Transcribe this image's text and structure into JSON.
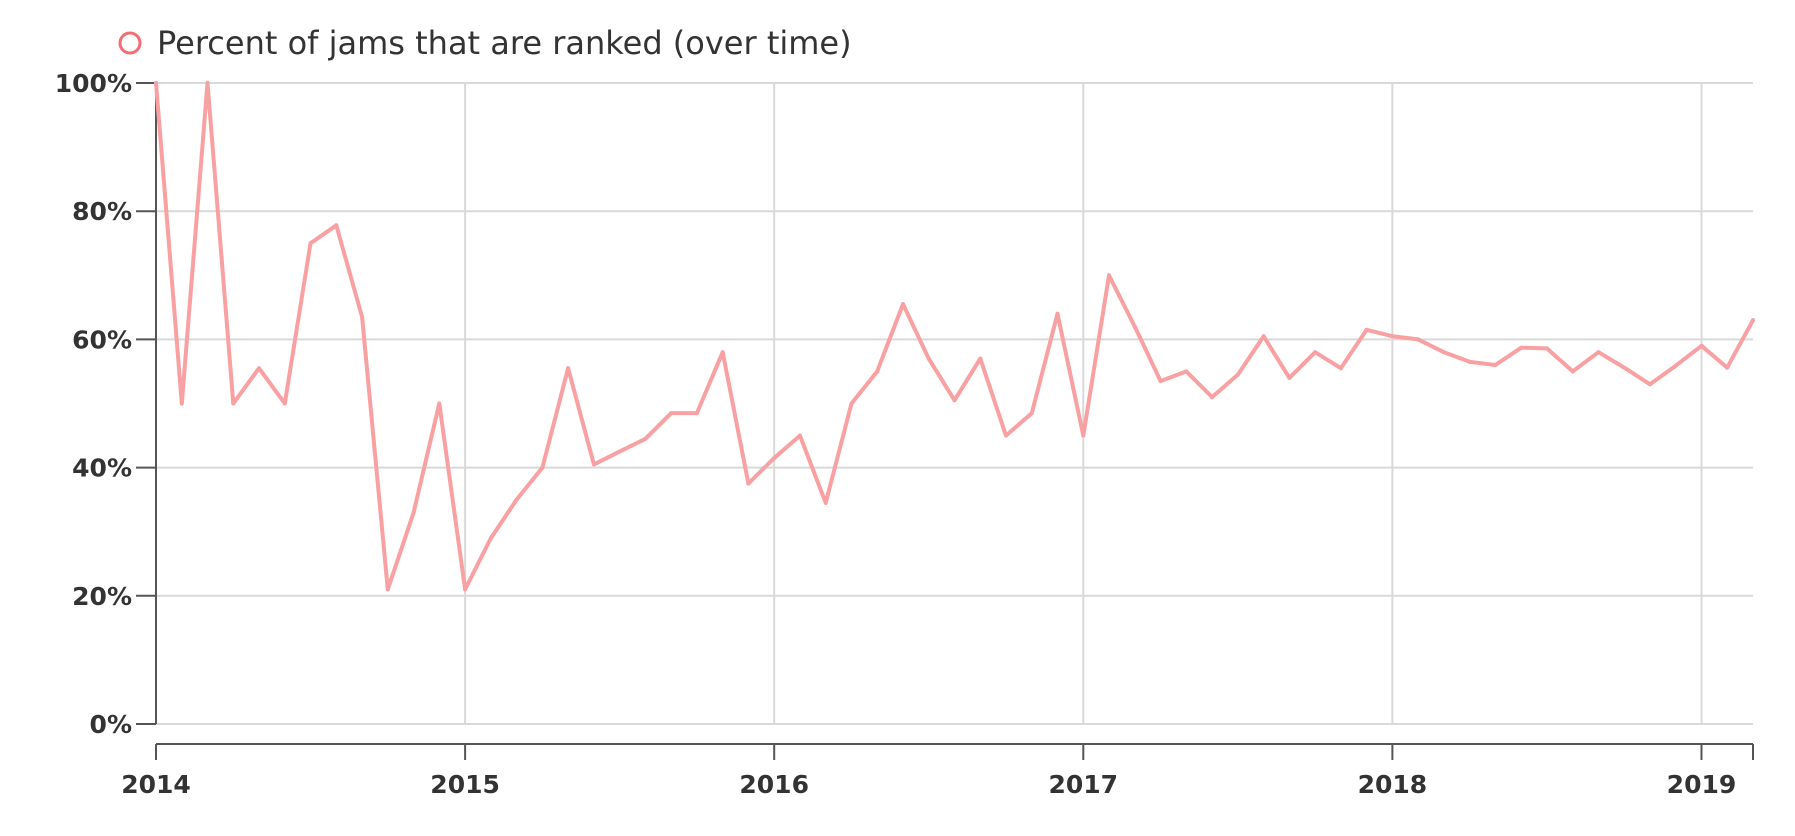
{
  "legend": {
    "label": "Percent of jams that are ranked (over time)"
  },
  "colors": {
    "series": "#f9a0a3",
    "legend_marker": "#f26d75"
  },
  "chart_data": {
    "type": "line",
    "title": "",
    "xlabel": "",
    "ylabel": "",
    "grid": true,
    "legend_position": "top-left",
    "ylim": [
      0,
      100
    ],
    "xlim": [
      "2014-01",
      "2019-03"
    ],
    "y_ticks": [
      "0%",
      "20%",
      "40%",
      "60%",
      "80%",
      "100%"
    ],
    "y_tick_values": [
      0,
      20,
      40,
      60,
      80,
      100
    ],
    "x_ticks": [
      "2014",
      "2015",
      "2016",
      "2017",
      "2018",
      "2019"
    ],
    "x_tick_values": [
      "2014-01",
      "2015-01",
      "2016-01",
      "2017-01",
      "2018-01",
      "2019-01"
    ],
    "series": [
      {
        "name": "Percent of jams that are ranked (over time)",
        "x": [
          "2014-01",
          "2014-02",
          "2014-03",
          "2014-04",
          "2014-05",
          "2014-06",
          "2014-07",
          "2014-08",
          "2014-09",
          "2014-10",
          "2014-11",
          "2014-12",
          "2015-01",
          "2015-02",
          "2015-03",
          "2015-04",
          "2015-05",
          "2015-06",
          "2015-07",
          "2015-08",
          "2015-09",
          "2015-10",
          "2015-11",
          "2015-12",
          "2016-01",
          "2016-02",
          "2016-03",
          "2016-04",
          "2016-05",
          "2016-06",
          "2016-07",
          "2016-08",
          "2016-09",
          "2016-10",
          "2016-11",
          "2016-12",
          "2017-01",
          "2017-02",
          "2017-03",
          "2017-04",
          "2017-05",
          "2017-06",
          "2017-07",
          "2017-08",
          "2017-09",
          "2017-10",
          "2017-11",
          "2017-12",
          "2018-01",
          "2018-02",
          "2018-03",
          "2018-04",
          "2018-05",
          "2018-06",
          "2018-07",
          "2018-08",
          "2018-09",
          "2018-10",
          "2018-11",
          "2018-12",
          "2019-01",
          "2019-02",
          "2019-03"
        ],
        "values": [
          100,
          50,
          100,
          50,
          55.5,
          50,
          75,
          77.8,
          63.5,
          21,
          33,
          50,
          21,
          29,
          35,
          40,
          55.5,
          40.5,
          42.5,
          44.5,
          48.5,
          48.5,
          58,
          37.5,
          41.5,
          45,
          34.5,
          50,
          55,
          65.5,
          57,
          50.5,
          57,
          45,
          48.5,
          64,
          45,
          70,
          62,
          53.5,
          55,
          51,
          54.5,
          60.5,
          54,
          58,
          55.5,
          61.5,
          60.5,
          60,
          58,
          56.5,
          56,
          58.7,
          58.6,
          55,
          58,
          55.6,
          53,
          55.9,
          59,
          55.6,
          63
        ]
      }
    ]
  }
}
